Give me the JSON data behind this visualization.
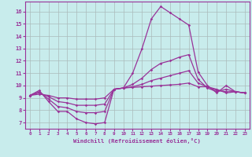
{
  "xlabel": "Windchill (Refroidissement éolien,°C)",
  "background_color": "#c8ecec",
  "line_color": "#993399",
  "grid_color": "#aabbbb",
  "xlim": [
    -0.5,
    23.5
  ],
  "ylim": [
    6.5,
    16.8
  ],
  "yticks": [
    7,
    8,
    9,
    10,
    11,
    12,
    13,
    14,
    15,
    16
  ],
  "xticks": [
    0,
    1,
    2,
    3,
    4,
    5,
    6,
    7,
    8,
    9,
    10,
    11,
    12,
    13,
    14,
    15,
    16,
    17,
    18,
    19,
    20,
    21,
    22,
    23
  ],
  "line1_x": [
    0,
    1,
    2,
    3,
    4,
    5,
    6,
    7,
    8,
    9,
    10,
    11,
    12,
    13,
    14,
    15,
    16,
    17,
    18,
    19,
    20,
    21,
    22,
    23
  ],
  "line1_y": [
    9.2,
    9.6,
    8.7,
    7.9,
    7.9,
    7.3,
    7.0,
    6.9,
    7.0,
    9.7,
    9.8,
    11.0,
    13.0,
    15.4,
    16.4,
    15.9,
    15.4,
    14.9,
    11.1,
    10.0,
    9.4,
    10.0,
    9.5,
    9.4
  ],
  "line2_x": [
    0,
    1,
    2,
    3,
    4,
    5,
    6,
    7,
    8,
    9,
    10,
    11,
    12,
    13,
    14,
    15,
    16,
    17,
    18,
    19,
    20,
    21,
    22,
    23
  ],
  "line2_y": [
    9.2,
    9.5,
    8.9,
    8.3,
    8.2,
    7.9,
    7.8,
    7.8,
    7.9,
    9.7,
    9.8,
    10.1,
    10.6,
    11.3,
    11.8,
    12.0,
    12.3,
    12.5,
    10.5,
    9.8,
    9.5,
    9.7,
    9.5,
    9.4
  ],
  "line3_x": [
    0,
    1,
    2,
    3,
    4,
    5,
    6,
    7,
    8,
    9,
    10,
    11,
    12,
    13,
    14,
    15,
    16,
    17,
    18,
    19,
    20,
    21,
    22,
    23
  ],
  "line3_y": [
    9.2,
    9.4,
    9.1,
    8.7,
    8.6,
    8.4,
    8.4,
    8.4,
    8.5,
    9.7,
    9.8,
    9.9,
    10.1,
    10.4,
    10.6,
    10.8,
    11.0,
    11.2,
    10.2,
    9.9,
    9.6,
    9.5,
    9.5,
    9.4
  ],
  "line4_x": [
    0,
    1,
    2,
    3,
    4,
    5,
    6,
    7,
    8,
    9,
    10,
    11,
    12,
    13,
    14,
    15,
    16,
    17,
    18,
    19,
    20,
    21,
    22,
    23
  ],
  "line4_y": [
    9.2,
    9.3,
    9.2,
    9.0,
    9.0,
    8.9,
    8.9,
    8.9,
    9.0,
    9.7,
    9.8,
    9.85,
    9.9,
    9.95,
    10.0,
    10.05,
    10.1,
    10.2,
    9.9,
    9.9,
    9.7,
    9.4,
    9.5,
    9.4
  ]
}
